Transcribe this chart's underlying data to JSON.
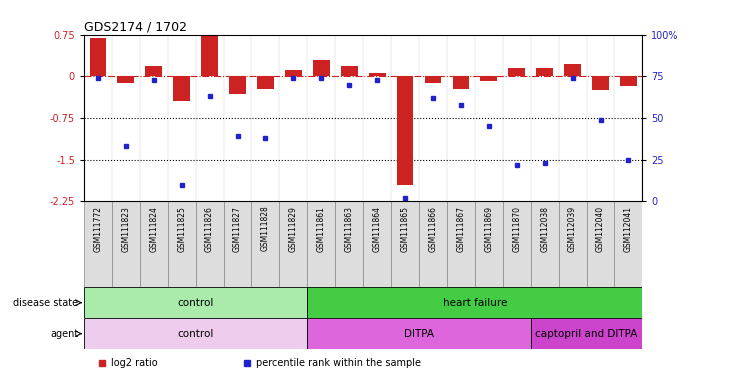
{
  "title": "GDS2174 / 1702",
  "samples": [
    "GSM111772",
    "GSM111823",
    "GSM111824",
    "GSM111825",
    "GSM111826",
    "GSM111827",
    "GSM111828",
    "GSM111829",
    "GSM111861",
    "GSM111863",
    "GSM111864",
    "GSM111865",
    "GSM111866",
    "GSM111867",
    "GSM111869",
    "GSM111870",
    "GSM112038",
    "GSM112039",
    "GSM112040",
    "GSM112041"
  ],
  "log2_ratio": [
    0.68,
    -0.12,
    0.18,
    -0.45,
    0.72,
    -0.32,
    -0.22,
    0.12,
    0.3,
    0.18,
    0.06,
    -1.95,
    -0.12,
    -0.22,
    -0.08,
    0.15,
    0.14,
    0.22,
    -0.25,
    -0.17
  ],
  "percentile": [
    74,
    33,
    73,
    10,
    63,
    39,
    38,
    74,
    74,
    70,
    73,
    2,
    62,
    58,
    45,
    22,
    23,
    74,
    49,
    25
  ],
  "ylim_left": [
    -2.25,
    0.75
  ],
  "ylim_right": [
    0,
    100
  ],
  "yticks_left": [
    0.75,
    0,
    -0.75,
    -1.5,
    -2.25
  ],
  "yticks_right": [
    100,
    75,
    50,
    25,
    0
  ],
  "yticks_right_labels": [
    "100%",
    "75",
    "50",
    "25",
    "0"
  ],
  "dotted_lines": [
    -0.75,
    -1.5
  ],
  "bar_color": "#cc2222",
  "dot_color": "#2222cc",
  "disease_state": [
    {
      "label": "control",
      "start": 0,
      "end": 8,
      "color": "#aaeaaa"
    },
    {
      "label": "heart failure",
      "start": 8,
      "end": 20,
      "color": "#44cc44"
    }
  ],
  "agent": [
    {
      "label": "control",
      "start": 0,
      "end": 8,
      "color": "#eeccee"
    },
    {
      "label": "DITPA",
      "start": 8,
      "end": 16,
      "color": "#dd66dd"
    },
    {
      "label": "captopril and DITPA",
      "start": 16,
      "end": 20,
      "color": "#cc44cc"
    }
  ],
  "legend_items": [
    {
      "label": "log2 ratio",
      "color": "#cc2222"
    },
    {
      "label": "percentile rank within the sample",
      "color": "#2222cc"
    }
  ],
  "label_cell_color": "#dddddd",
  "background_color": "#ffffff"
}
